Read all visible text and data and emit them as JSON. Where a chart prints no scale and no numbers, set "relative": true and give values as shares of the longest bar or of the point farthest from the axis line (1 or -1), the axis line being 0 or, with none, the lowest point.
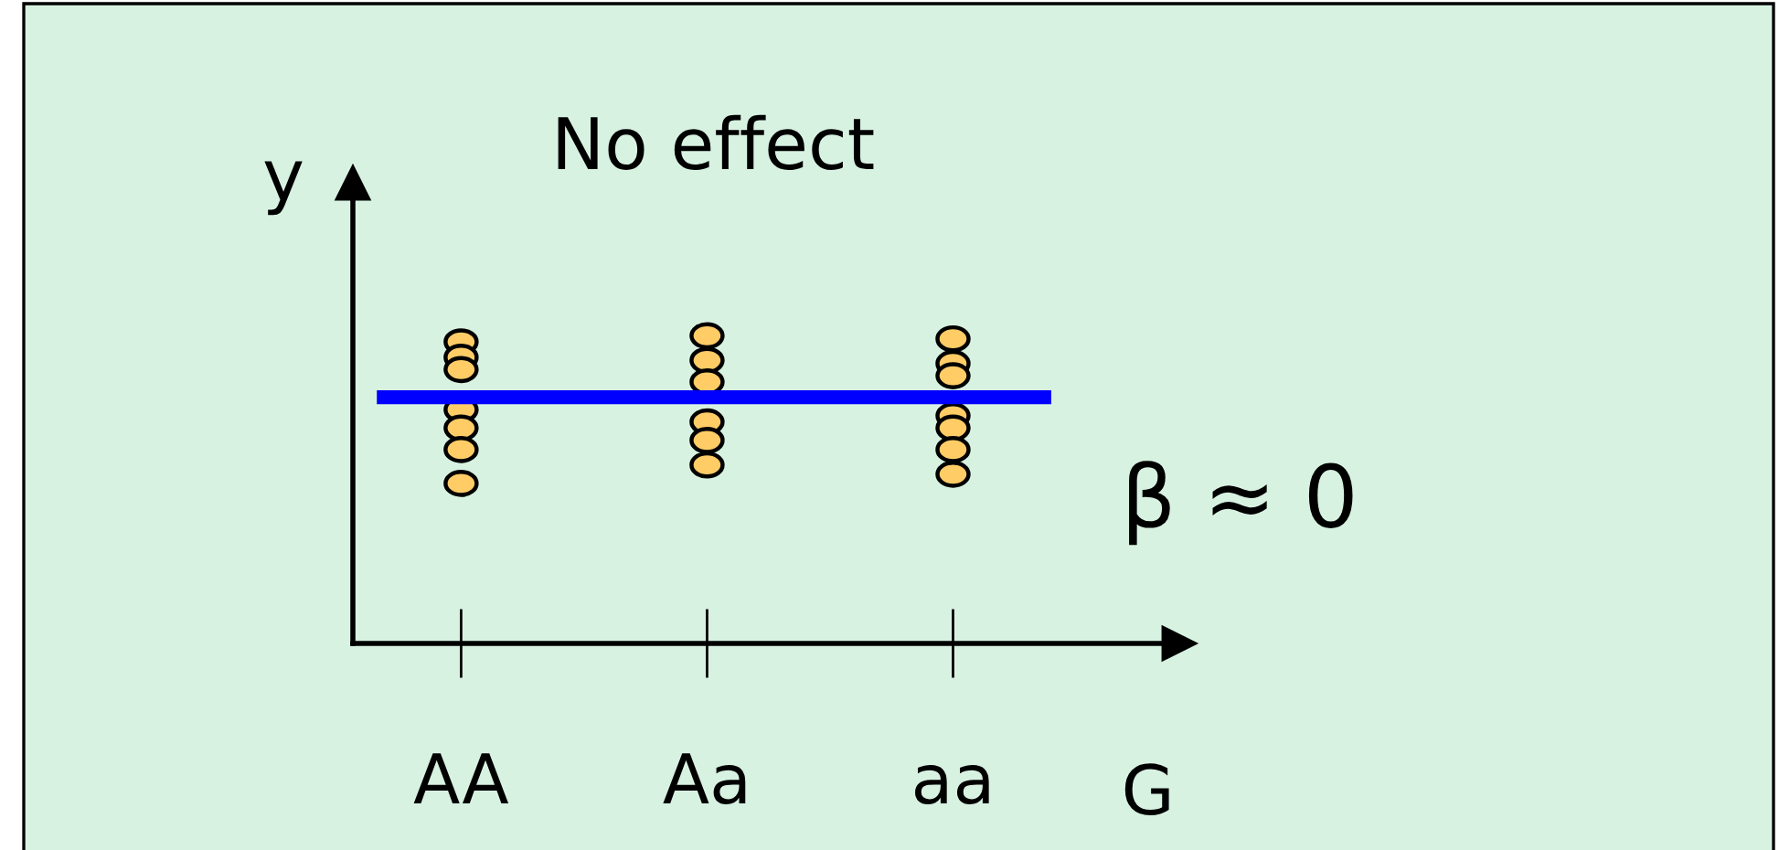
{
  "chart_data": {
    "type": "scatter",
    "title": "No effect",
    "xlabel": "G",
    "ylabel": "y",
    "annotations": [
      "β ≈ 0"
    ],
    "categories": [
      "AA",
      "Aa",
      "aa"
    ],
    "relative": true,
    "marker": "circle",
    "tick_labels": "x",
    "series": [
      {
        "color": "#ffcc66",
        "x": [
          "AA",
          "AA",
          "AA",
          "AA",
          "AA",
          "AA",
          "AA",
          "Aa",
          "Aa",
          "Aa",
          "Aa",
          "Aa",
          "Aa",
          "aa",
          "aa",
          "aa",
          "aa",
          "aa",
          "aa",
          "aa"
        ],
        "values": [
          0.98,
          0.93,
          0.89,
          0.76,
          0.7,
          0.63,
          0.52,
          1.0,
          0.92,
          0.85,
          0.72,
          0.66,
          0.58,
          0.99,
          0.91,
          0.87,
          0.74,
          0.7,
          0.63,
          0.55
        ]
      }
    ],
    "ref_lines": [
      {
        "axis": "y",
        "value": 0.8,
        "color": "#0000ff",
        "line_style": "solid"
      }
    ]
  }
}
